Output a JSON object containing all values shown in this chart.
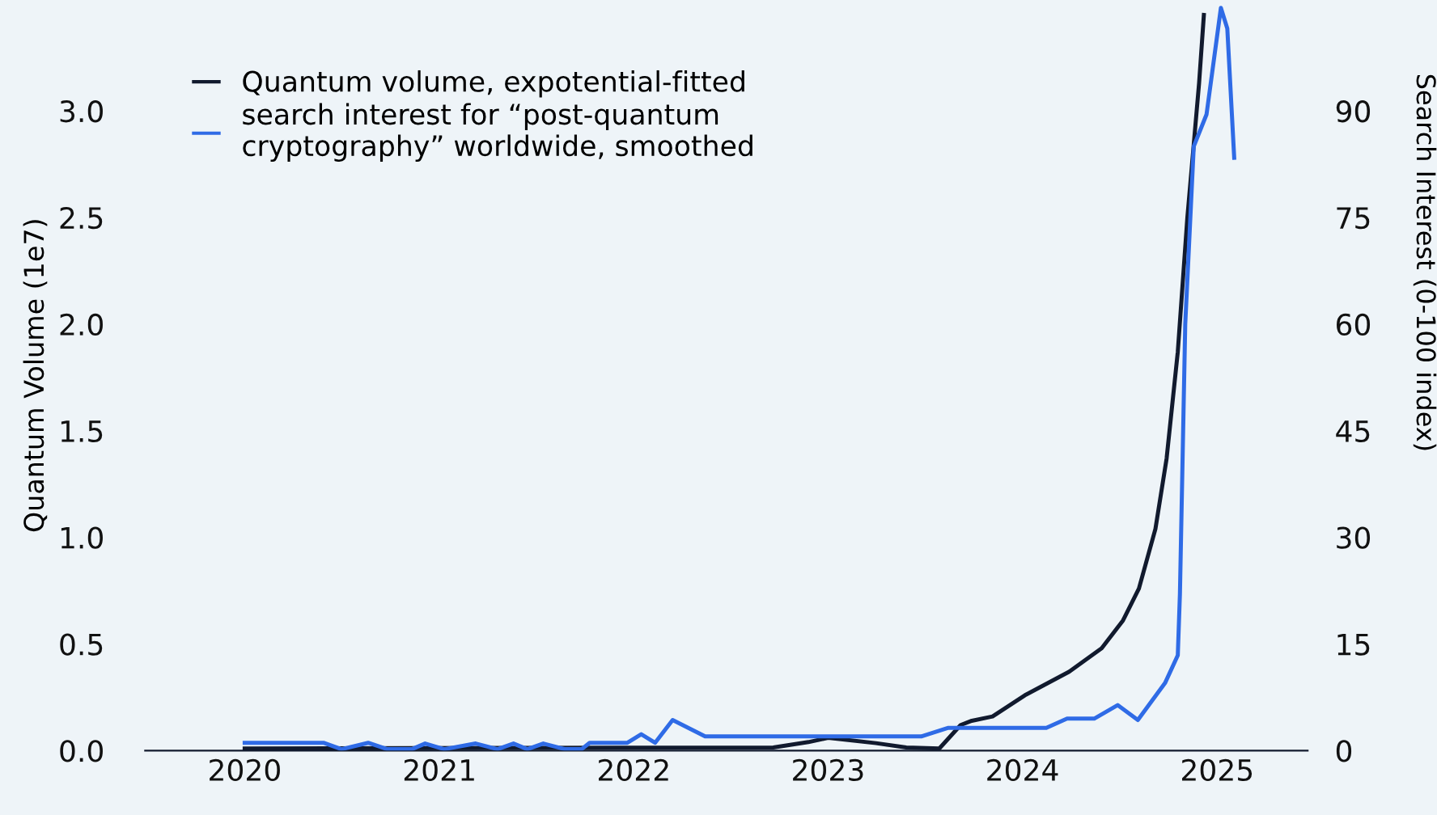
{
  "chart_data": {
    "type": "line",
    "ylabel": "Quantum Volume (1e7)",
    "y2label": "Search Interest (0-100 index)",
    "xlim": [
      "2019-06-28",
      "2025-06-20"
    ],
    "xticks": [
      "2020",
      "2021",
      "2022",
      "2023",
      "2024",
      "2025"
    ],
    "ylim": [
      0,
      3.52
    ],
    "yticks": [
      {
        "value": 0,
        "label": "0.0"
      },
      0.5,
      {
        "value": 1,
        "label": "1.0"
      },
      1.5,
      {
        "value": 2,
        "label": "2.0"
      },
      2.5,
      {
        "value": 3,
        "label": "3.0"
      }
    ],
    "y2lim": [
      0,
      105.6
    ],
    "y2ticks": [
      0,
      15,
      30,
      45,
      60,
      75,
      90
    ],
    "legend": "top left",
    "grid": false,
    "line_style": "solid",
    "marker": "none",
    "series": [
      {
        "name": "Quantum volume, expotential-fitted",
        "color": "#111a2e",
        "axis": "y",
        "x": [
          "2020-01-01",
          "2022-09-20",
          "2022-11-25",
          "2023-01-01",
          "2023-04-01",
          "2023-05-28",
          "2023-07-29",
          "2023-09-07",
          "2023-09-28",
          "2023-11-06",
          "2024-01-06",
          "2024-03-29",
          "2024-05-29",
          "2024-07-08",
          "2024-08-07",
          "2024-09-07",
          "2024-09-28",
          "2024-10-19",
          "2024-11-06",
          "2024-11-28",
          "2024-12-07"
        ],
        "values": [
          0.01,
          0.015,
          0.04,
          0.06,
          0.035,
          0.015,
          0.01,
          0.12,
          0.14,
          0.16,
          0.26,
          0.37,
          0.48,
          0.61,
          0.76,
          1.04,
          1.37,
          1.87,
          2.5,
          3.13,
          3.45
        ]
      },
      {
        "name": "search interest for “post-quantum\ncryptography” worldwide, smoothed",
        "color": "#2f6be6",
        "axis": "y2",
        "x": [
          "2020-01-01",
          "2020-05-28",
          "2020-07-01",
          "2020-08-20",
          "2020-09-25",
          "2020-11-10",
          "2020-12-05",
          "2021-01-10",
          "2021-03-10",
          "2021-04-20",
          "2021-05-20",
          "2021-06-15",
          "2021-07-15",
          "2021-08-25",
          "2021-09-25",
          "2021-10-10",
          "2021-12-20",
          "2022-01-15",
          "2022-02-10",
          "2022-03-15",
          "2022-05-15",
          "2023-06-25",
          "2023-08-15",
          "2024-02-15",
          "2024-03-25",
          "2024-05-15",
          "2024-06-28",
          "2024-08-05",
          "2024-09-25",
          "2024-10-19",
          "2024-10-23",
          "2024-11-02",
          "2024-11-18",
          "2024-12-12",
          "2025-01-08",
          "2025-01-20",
          "2025-02-02"
        ],
        "values": [
          1.1,
          1.1,
          0.2,
          1.1,
          0.2,
          0.2,
          1.0,
          0.2,
          1.0,
          0.2,
          1.0,
          0.2,
          1.0,
          0.2,
          0.2,
          1.1,
          1.1,
          2.3,
          1.1,
          4.3,
          2.0,
          2.0,
          3.2,
          3.2,
          4.5,
          4.5,
          6.4,
          4.3,
          9.5,
          13.4,
          22,
          60,
          85,
          89.5,
          104.5,
          101.6,
          83.4
        ]
      }
    ]
  }
}
